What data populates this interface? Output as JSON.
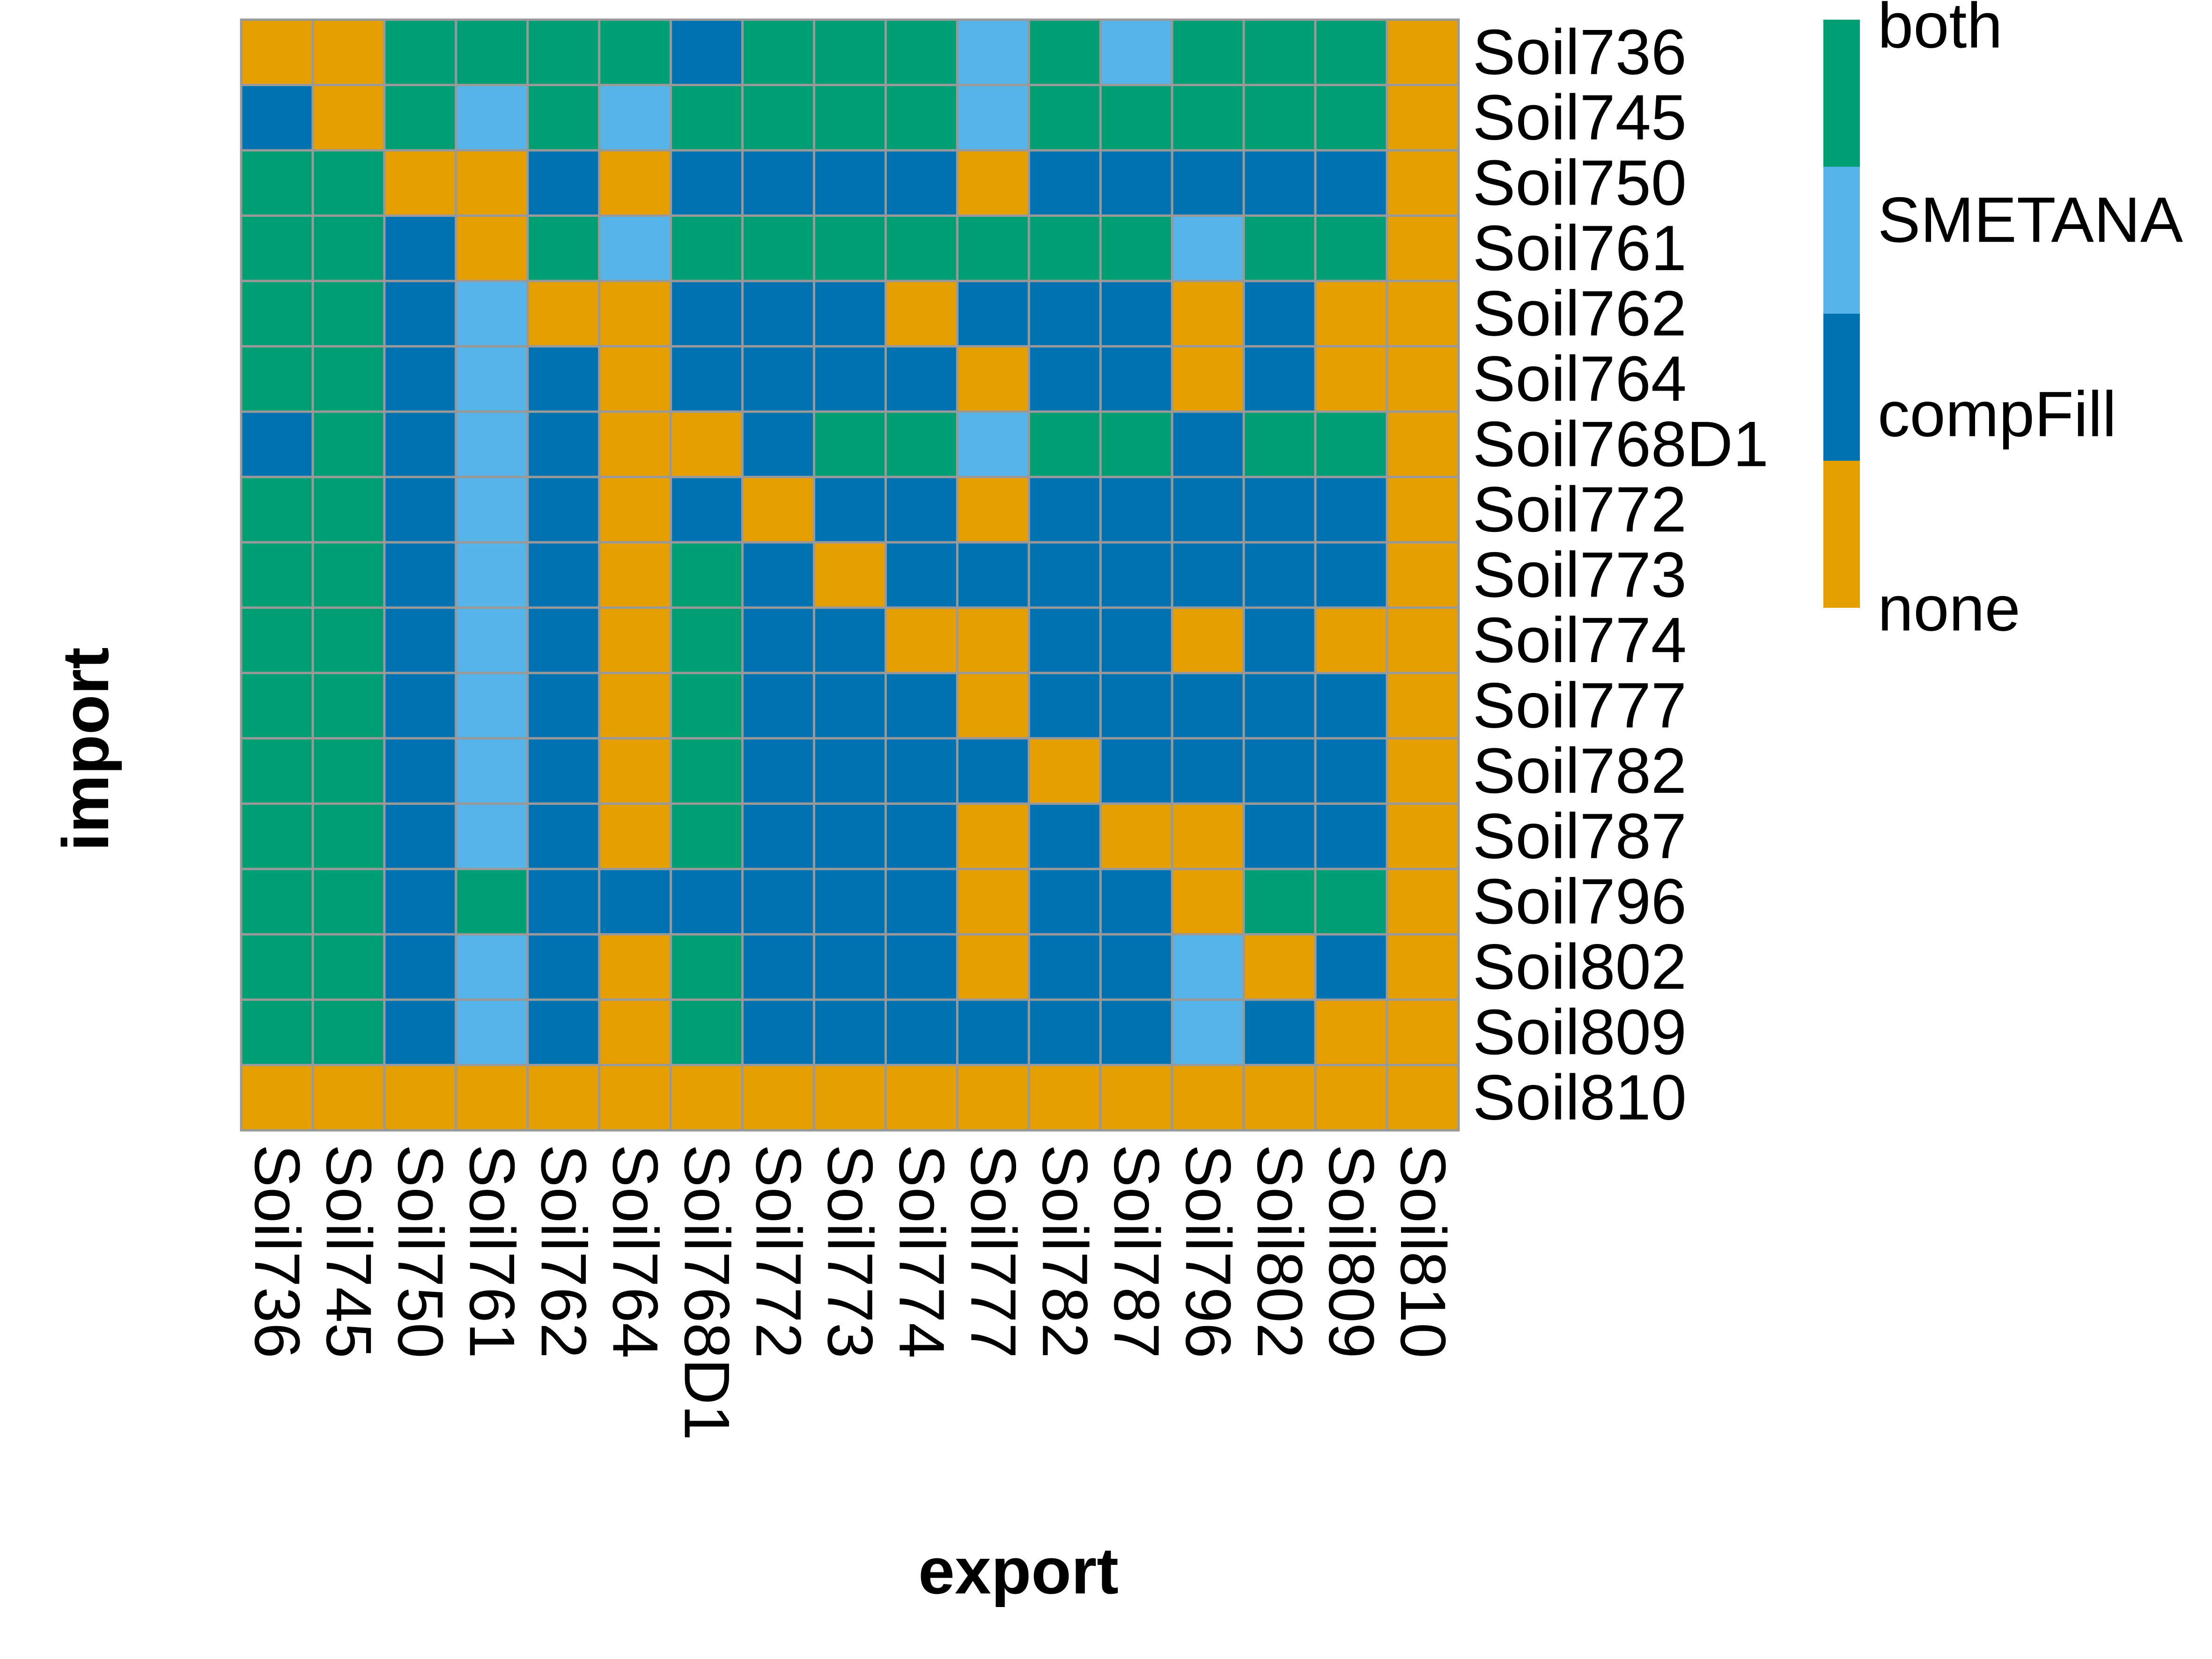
{
  "chart_data": {
    "type": "heatmap",
    "xlabel": "export",
    "ylabel": "import",
    "x_categories": [
      "Soil736",
      "Soil745",
      "Soil750",
      "Soil761",
      "Soil762",
      "Soil764",
      "Soil768D1",
      "Soil772",
      "Soil773",
      "Soil774",
      "Soil777",
      "Soil782",
      "Soil787",
      "Soil796",
      "Soil802",
      "Soil809",
      "Soil810"
    ],
    "y_categories": [
      "Soil736",
      "Soil745",
      "Soil750",
      "Soil761",
      "Soil762",
      "Soil764",
      "Soil768D1",
      "Soil772",
      "Soil773",
      "Soil774",
      "Soil777",
      "Soil782",
      "Soil787",
      "Soil796",
      "Soil802",
      "Soil809",
      "Soil810"
    ],
    "levels": [
      "both",
      "SMETANA",
      "compFill",
      "none"
    ],
    "colors": {
      "both": "#009E73",
      "SMETANA": "#56B4E9",
      "compFill": "#0072B2",
      "none": "#E69F00",
      "grid": "#999999"
    },
    "legend": {
      "placement": "top-right",
      "entries": [
        "both",
        "SMETANA",
        "compFill",
        "none"
      ]
    },
    "values": [
      [
        "none",
        "none",
        "both",
        "both",
        "both",
        "both",
        "compFill",
        "both",
        "both",
        "both",
        "SMETANA",
        "both",
        "SMETANA",
        "both",
        "both",
        "both",
        "none"
      ],
      [
        "compFill",
        "none",
        "both",
        "SMETANA",
        "both",
        "SMETANA",
        "both",
        "both",
        "both",
        "both",
        "SMETANA",
        "both",
        "both",
        "both",
        "both",
        "both",
        "none"
      ],
      [
        "both",
        "both",
        "none",
        "none",
        "compFill",
        "none",
        "compFill",
        "compFill",
        "compFill",
        "compFill",
        "none",
        "compFill",
        "compFill",
        "compFill",
        "compFill",
        "compFill",
        "none"
      ],
      [
        "both",
        "both",
        "compFill",
        "none",
        "both",
        "SMETANA",
        "both",
        "both",
        "both",
        "both",
        "both",
        "both",
        "both",
        "SMETANA",
        "both",
        "both",
        "none"
      ],
      [
        "both",
        "both",
        "compFill",
        "SMETANA",
        "none",
        "none",
        "compFill",
        "compFill",
        "compFill",
        "none",
        "compFill",
        "compFill",
        "compFill",
        "none",
        "compFill",
        "none",
        "none"
      ],
      [
        "both",
        "both",
        "compFill",
        "SMETANA",
        "compFill",
        "none",
        "compFill",
        "compFill",
        "compFill",
        "compFill",
        "none",
        "compFill",
        "compFill",
        "none",
        "compFill",
        "none",
        "none"
      ],
      [
        "compFill",
        "both",
        "compFill",
        "SMETANA",
        "compFill",
        "none",
        "none",
        "compFill",
        "both",
        "both",
        "SMETANA",
        "both",
        "both",
        "compFill",
        "both",
        "both",
        "none"
      ],
      [
        "both",
        "both",
        "compFill",
        "SMETANA",
        "compFill",
        "none",
        "compFill",
        "none",
        "compFill",
        "compFill",
        "none",
        "compFill",
        "compFill",
        "compFill",
        "compFill",
        "compFill",
        "none"
      ],
      [
        "both",
        "both",
        "compFill",
        "SMETANA",
        "compFill",
        "none",
        "both",
        "compFill",
        "none",
        "compFill",
        "compFill",
        "compFill",
        "compFill",
        "compFill",
        "compFill",
        "compFill",
        "none"
      ],
      [
        "both",
        "both",
        "compFill",
        "SMETANA",
        "compFill",
        "none",
        "both",
        "compFill",
        "compFill",
        "none",
        "none",
        "compFill",
        "compFill",
        "none",
        "compFill",
        "none",
        "none"
      ],
      [
        "both",
        "both",
        "compFill",
        "SMETANA",
        "compFill",
        "none",
        "both",
        "compFill",
        "compFill",
        "compFill",
        "none",
        "compFill",
        "compFill",
        "compFill",
        "compFill",
        "compFill",
        "none"
      ],
      [
        "both",
        "both",
        "compFill",
        "SMETANA",
        "compFill",
        "none",
        "both",
        "compFill",
        "compFill",
        "compFill",
        "compFill",
        "none",
        "compFill",
        "compFill",
        "compFill",
        "compFill",
        "none"
      ],
      [
        "both",
        "both",
        "compFill",
        "SMETANA",
        "compFill",
        "none",
        "both",
        "compFill",
        "compFill",
        "compFill",
        "none",
        "compFill",
        "none",
        "none",
        "compFill",
        "compFill",
        "none"
      ],
      [
        "both",
        "both",
        "compFill",
        "both",
        "compFill",
        "compFill",
        "compFill",
        "compFill",
        "compFill",
        "compFill",
        "none",
        "compFill",
        "compFill",
        "none",
        "both",
        "both",
        "none"
      ],
      [
        "both",
        "both",
        "compFill",
        "SMETANA",
        "compFill",
        "none",
        "both",
        "compFill",
        "compFill",
        "compFill",
        "none",
        "compFill",
        "compFill",
        "SMETANA",
        "none",
        "compFill",
        "none"
      ],
      [
        "both",
        "both",
        "compFill",
        "SMETANA",
        "compFill",
        "none",
        "both",
        "compFill",
        "compFill",
        "compFill",
        "compFill",
        "compFill",
        "compFill",
        "SMETANA",
        "compFill",
        "none",
        "none"
      ],
      [
        "none",
        "none",
        "none",
        "none",
        "none",
        "none",
        "none",
        "none",
        "none",
        "none",
        "none",
        "none",
        "none",
        "none",
        "none",
        "none",
        "none"
      ]
    ]
  }
}
